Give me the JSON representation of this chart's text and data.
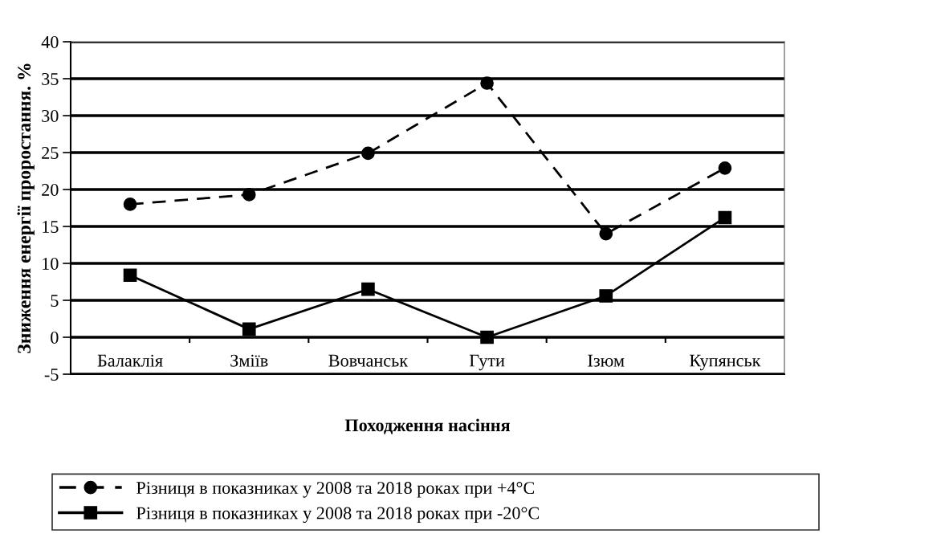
{
  "chart_data": {
    "type": "line",
    "categories": [
      "Балаклія",
      "Зміїв",
      "Вовчанськ",
      "Гути",
      "Ізюм",
      "Купянськ"
    ],
    "series": [
      {
        "name": "Різниця в показниках у 2008 та 2018 роках при +4°C",
        "color": "#000000",
        "marker": "circle",
        "line_style": "dashed",
        "values": [
          18,
          19.3,
          24.9,
          34.4,
          14,
          22.9
        ]
      },
      {
        "name": "Різниця в показниках у 2008 та 2018 роках при -20°C",
        "color": "#000000",
        "marker": "square",
        "line_style": "solid",
        "values": [
          8.4,
          1.1,
          6.5,
          0,
          5.6,
          16.2
        ]
      }
    ],
    "xlabel": "Походження насіння",
    "ylabel": "Зниження енергії проростання. %",
    "ylim": [
      -5,
      40
    ],
    "yticks": [
      -5,
      0,
      5,
      10,
      15,
      20,
      25,
      30,
      35,
      40
    ],
    "grid": "y",
    "legend": "bottom"
  }
}
